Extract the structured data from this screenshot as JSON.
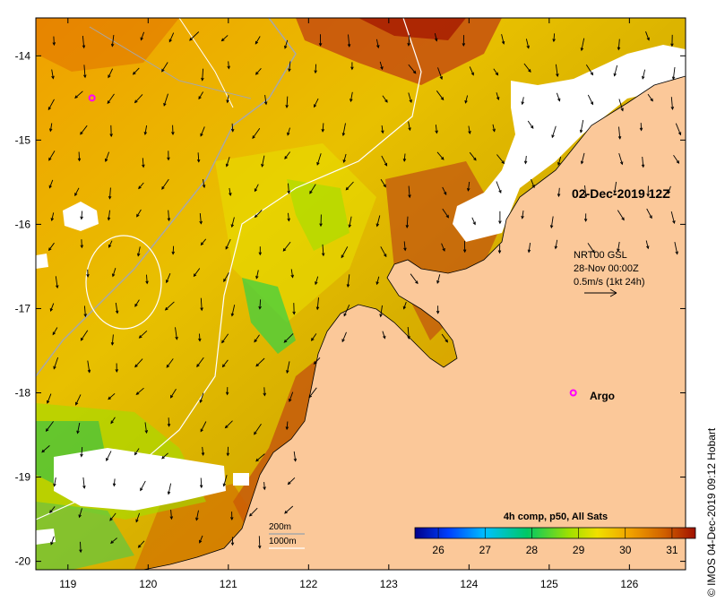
{
  "map": {
    "timestamp": "02-Dec-2019 12Z",
    "lon_axis": {
      "range": [
        118.6,
        126.7
      ],
      "ticks": [
        "119",
        "120",
        "121",
        "122",
        "123",
        "124",
        "125",
        "126"
      ]
    },
    "lat_axis": {
      "range": [
        -20.1,
        -13.55
      ],
      "ticks": [
        "-14",
        "-15",
        "-16",
        "-17",
        "-18",
        "-19",
        "-20"
      ]
    },
    "current_info": {
      "source": "NRT00 GSL",
      "date": "28-Nov 00:00Z",
      "scale": "0.5m/s (1kt 24h)"
    },
    "argo_label": "Argo",
    "argo_floats": [
      {
        "lon": 119.3,
        "lat": -14.5
      },
      {
        "lon": 125.3,
        "lat": -18.0
      }
    ],
    "isobath_legend": {
      "shallow": "200m",
      "deep": "1000m"
    },
    "colorbar": {
      "title": "4h comp, p50, All Sats",
      "ticks": [
        "26",
        "27",
        "28",
        "29",
        "30",
        "31"
      ],
      "range": [
        25.5,
        31.5
      ],
      "colors": [
        "#00008b",
        "#0040ff",
        "#00c0ff",
        "#00c864",
        "#a0e000",
        "#f0e000",
        "#f0a000",
        "#d06000",
        "#a01000"
      ]
    },
    "credit": "© IMOS 04-Dec-2019 09:12 Hobart",
    "colors": {
      "land": "#fbc899",
      "cloud": "#ffffff",
      "argo": "#ff00ff"
    }
  }
}
